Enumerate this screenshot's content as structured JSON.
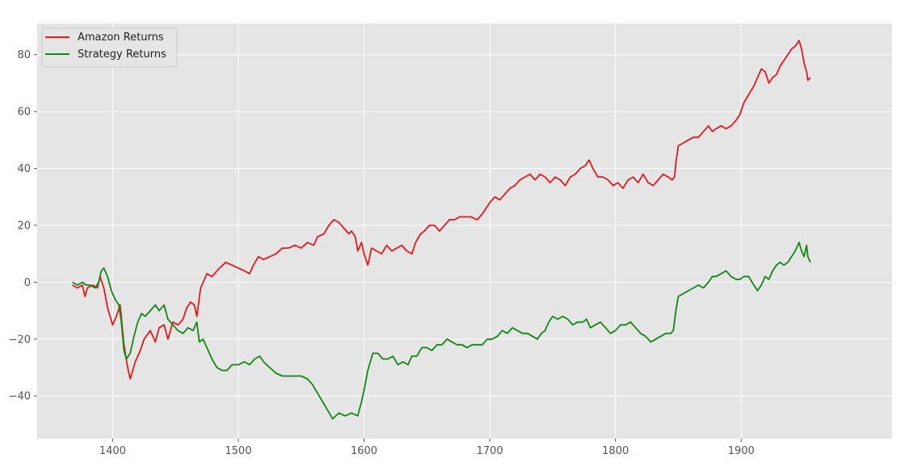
{
  "chart_data": {
    "type": "line",
    "title": "",
    "xlabel": "",
    "ylabel": "",
    "xlim": [
      1340,
      2020
    ],
    "ylim": [
      -55,
      91
    ],
    "xticks": [
      1400,
      1500,
      1600,
      1700,
      1800,
      1900
    ],
    "yticks": [
      -40,
      -20,
      0,
      20,
      40,
      60,
      80
    ],
    "ytick_labels": [
      "−40",
      "−20",
      "0",
      "20",
      "40",
      "60",
      "80"
    ],
    "grid": true,
    "legend_position": "top-left",
    "series": [
      {
        "name": "Amazon Returns",
        "color": "#e41a1c",
        "points": [
          [
            1368,
            -1
          ],
          [
            1372,
            -2
          ],
          [
            1376,
            -1
          ],
          [
            1378,
            -5
          ],
          [
            1380,
            -2
          ],
          [
            1384,
            -1
          ],
          [
            1388,
            -2
          ],
          [
            1390,
            2
          ],
          [
            1393,
            -2
          ],
          [
            1396,
            -9
          ],
          [
            1400,
            -15
          ],
          [
            1403,
            -12
          ],
          [
            1406,
            -8
          ],
          [
            1409,
            -22
          ],
          [
            1412,
            -30
          ],
          [
            1414,
            -34
          ],
          [
            1418,
            -28
          ],
          [
            1422,
            -24
          ],
          [
            1425,
            -20
          ],
          [
            1430,
            -17
          ],
          [
            1434,
            -21
          ],
          [
            1437,
            -16
          ],
          [
            1441,
            -15
          ],
          [
            1444,
            -20
          ],
          [
            1448,
            -14
          ],
          [
            1452,
            -15
          ],
          [
            1456,
            -13
          ],
          [
            1459,
            -9
          ],
          [
            1462,
            -7
          ],
          [
            1465,
            -8
          ],
          [
            1467,
            -12
          ],
          [
            1470,
            -2
          ],
          [
            1472,
            0
          ],
          [
            1475,
            3
          ],
          [
            1479,
            2
          ],
          [
            1485,
            5
          ],
          [
            1490,
            7
          ],
          [
            1495,
            6
          ],
          [
            1500,
            5
          ],
          [
            1505,
            4
          ],
          [
            1509,
            3
          ],
          [
            1512,
            6
          ],
          [
            1516,
            9
          ],
          [
            1520,
            8
          ],
          [
            1525,
            9
          ],
          [
            1530,
            10
          ],
          [
            1535,
            12
          ],
          [
            1540,
            12
          ],
          [
            1545,
            13
          ],
          [
            1550,
            12
          ],
          [
            1555,
            14
          ],
          [
            1560,
            13
          ],
          [
            1563,
            16
          ],
          [
            1568,
            17
          ],
          [
            1572,
            20
          ],
          [
            1576,
            22
          ],
          [
            1580,
            21
          ],
          [
            1584,
            19
          ],
          [
            1588,
            17
          ],
          [
            1590,
            18
          ],
          [
            1593,
            16
          ],
          [
            1595,
            11
          ],
          [
            1598,
            14
          ],
          [
            1600,
            10
          ],
          [
            1603,
            6
          ],
          [
            1606,
            12
          ],
          [
            1610,
            11
          ],
          [
            1614,
            10
          ],
          [
            1618,
            13
          ],
          [
            1622,
            11
          ],
          [
            1626,
            12
          ],
          [
            1630,
            13
          ],
          [
            1634,
            11
          ],
          [
            1638,
            10
          ],
          [
            1641,
            14
          ],
          [
            1645,
            17
          ],
          [
            1648,
            18
          ],
          [
            1652,
            20
          ],
          [
            1656,
            20
          ],
          [
            1660,
            18
          ],
          [
            1664,
            20
          ],
          [
            1668,
            22
          ],
          [
            1672,
            22
          ],
          [
            1676,
            23
          ],
          [
            1680,
            23
          ],
          [
            1685,
            23
          ],
          [
            1690,
            22
          ],
          [
            1694,
            24
          ],
          [
            1697,
            26
          ],
          [
            1700,
            28
          ],
          [
            1704,
            30
          ],
          [
            1708,
            29
          ],
          [
            1712,
            31
          ],
          [
            1716,
            33
          ],
          [
            1720,
            34
          ],
          [
            1724,
            36
          ],
          [
            1728,
            37
          ],
          [
            1732,
            38
          ],
          [
            1736,
            36
          ],
          [
            1740,
            38
          ],
          [
            1744,
            37
          ],
          [
            1748,
            35
          ],
          [
            1752,
            37
          ],
          [
            1756,
            36
          ],
          [
            1760,
            34
          ],
          [
            1764,
            37
          ],
          [
            1768,
            38
          ],
          [
            1772,
            40
          ],
          [
            1776,
            41
          ],
          [
            1779,
            43
          ],
          [
            1782,
            40
          ],
          [
            1786,
            37
          ],
          [
            1790,
            37
          ],
          [
            1794,
            36
          ],
          [
            1798,
            34
          ],
          [
            1802,
            35
          ],
          [
            1806,
            33
          ],
          [
            1810,
            36
          ],
          [
            1814,
            37
          ],
          [
            1818,
            35
          ],
          [
            1822,
            38
          ],
          [
            1826,
            35
          ],
          [
            1830,
            34
          ],
          [
            1834,
            36
          ],
          [
            1838,
            38
          ],
          [
            1842,
            37
          ],
          [
            1845,
            36
          ],
          [
            1847,
            37
          ],
          [
            1848,
            42
          ],
          [
            1850,
            48
          ],
          [
            1854,
            49
          ],
          [
            1858,
            50
          ],
          [
            1862,
            51
          ],
          [
            1866,
            51
          ],
          [
            1870,
            53
          ],
          [
            1874,
            55
          ],
          [
            1877,
            53
          ],
          [
            1880,
            54
          ],
          [
            1884,
            55
          ],
          [
            1888,
            54
          ],
          [
            1892,
            55
          ],
          [
            1896,
            57
          ],
          [
            1899,
            59
          ],
          [
            1902,
            63
          ],
          [
            1906,
            66
          ],
          [
            1910,
            69
          ],
          [
            1913,
            72
          ],
          [
            1916,
            75
          ],
          [
            1919,
            74
          ],
          [
            1922,
            70
          ],
          [
            1925,
            72
          ],
          [
            1928,
            73
          ],
          [
            1931,
            76
          ],
          [
            1934,
            78
          ],
          [
            1937,
            80
          ],
          [
            1940,
            82
          ],
          [
            1943,
            83
          ],
          [
            1946,
            85
          ],
          [
            1948,
            82
          ],
          [
            1950,
            77
          ],
          [
            1952,
            74
          ],
          [
            1953,
            71
          ],
          [
            1955,
            72
          ]
        ]
      },
      {
        "name": "Strategy Returns",
        "color": "#118811",
        "points": [
          [
            1368,
            0
          ],
          [
            1372,
            -1
          ],
          [
            1376,
            0
          ],
          [
            1379,
            -1
          ],
          [
            1382,
            -1
          ],
          [
            1386,
            -2
          ],
          [
            1389,
            0
          ],
          [
            1391,
            4
          ],
          [
            1393,
            5
          ],
          [
            1396,
            2
          ],
          [
            1399,
            -3
          ],
          [
            1402,
            -6
          ],
          [
            1405,
            -8
          ],
          [
            1407,
            -14
          ],
          [
            1409,
            -24
          ],
          [
            1411,
            -27
          ],
          [
            1414,
            -25
          ],
          [
            1417,
            -19
          ],
          [
            1420,
            -14
          ],
          [
            1423,
            -11
          ],
          [
            1426,
            -12
          ],
          [
            1430,
            -10
          ],
          [
            1434,
            -8
          ],
          [
            1437,
            -10
          ],
          [
            1441,
            -8
          ],
          [
            1444,
            -13
          ],
          [
            1448,
            -15
          ],
          [
            1452,
            -17
          ],
          [
            1456,
            -18
          ],
          [
            1460,
            -16
          ],
          [
            1464,
            -17
          ],
          [
            1467,
            -14
          ],
          [
            1469,
            -21
          ],
          [
            1472,
            -20
          ],
          [
            1475,
            -23
          ],
          [
            1479,
            -27
          ],
          [
            1483,
            -30
          ],
          [
            1487,
            -31
          ],
          [
            1491,
            -31
          ],
          [
            1495,
            -29
          ],
          [
            1500,
            -29
          ],
          [
            1505,
            -28
          ],
          [
            1509,
            -29
          ],
          [
            1513,
            -27
          ],
          [
            1517,
            -26
          ],
          [
            1520,
            -28
          ],
          [
            1525,
            -30
          ],
          [
            1530,
            -32
          ],
          [
            1535,
            -33
          ],
          [
            1540,
            -33
          ],
          [
            1545,
            -33
          ],
          [
            1550,
            -33
          ],
          [
            1555,
            -34
          ],
          [
            1559,
            -36
          ],
          [
            1563,
            -39
          ],
          [
            1567,
            -42
          ],
          [
            1571,
            -45
          ],
          [
            1575,
            -48
          ],
          [
            1580,
            -46
          ],
          [
            1585,
            -47
          ],
          [
            1590,
            -46
          ],
          [
            1595,
            -47
          ],
          [
            1598,
            -42
          ],
          [
            1600,
            -38
          ],
          [
            1603,
            -31
          ],
          [
            1607,
            -25
          ],
          [
            1611,
            -25
          ],
          [
            1615,
            -27
          ],
          [
            1619,
            -27
          ],
          [
            1623,
            -26
          ],
          [
            1627,
            -29
          ],
          [
            1631,
            -28
          ],
          [
            1635,
            -29
          ],
          [
            1638,
            -26
          ],
          [
            1642,
            -26
          ],
          [
            1646,
            -23
          ],
          [
            1650,
            -23
          ],
          [
            1654,
            -24
          ],
          [
            1658,
            -22
          ],
          [
            1662,
            -22
          ],
          [
            1666,
            -20
          ],
          [
            1670,
            -21
          ],
          [
            1674,
            -22
          ],
          [
            1678,
            -22
          ],
          [
            1682,
            -23
          ],
          [
            1686,
            -22
          ],
          [
            1690,
            -22
          ],
          [
            1694,
            -22
          ],
          [
            1698,
            -20
          ],
          [
            1702,
            -20
          ],
          [
            1706,
            -19
          ],
          [
            1710,
            -17
          ],
          [
            1714,
            -18
          ],
          [
            1718,
            -16
          ],
          [
            1722,
            -17
          ],
          [
            1726,
            -18
          ],
          [
            1730,
            -18
          ],
          [
            1734,
            -19
          ],
          [
            1738,
            -20
          ],
          [
            1741,
            -18
          ],
          [
            1744,
            -17
          ],
          [
            1747,
            -14
          ],
          [
            1750,
            -12
          ],
          [
            1754,
            -13
          ],
          [
            1758,
            -12
          ],
          [
            1762,
            -13
          ],
          [
            1766,
            -15
          ],
          [
            1770,
            -14
          ],
          [
            1774,
            -14
          ],
          [
            1777,
            -13
          ],
          [
            1780,
            -16
          ],
          [
            1784,
            -15
          ],
          [
            1788,
            -14
          ],
          [
            1792,
            -16
          ],
          [
            1796,
            -18
          ],
          [
            1800,
            -17
          ],
          [
            1804,
            -15
          ],
          [
            1808,
            -15
          ],
          [
            1812,
            -14
          ],
          [
            1816,
            -16
          ],
          [
            1820,
            -18
          ],
          [
            1824,
            -19
          ],
          [
            1828,
            -21
          ],
          [
            1832,
            -20
          ],
          [
            1836,
            -19
          ],
          [
            1840,
            -18
          ],
          [
            1844,
            -18
          ],
          [
            1846,
            -17
          ],
          [
            1848,
            -10
          ],
          [
            1850,
            -5
          ],
          [
            1854,
            -4
          ],
          [
            1858,
            -3
          ],
          [
            1862,
            -2
          ],
          [
            1866,
            -1
          ],
          [
            1870,
            -2
          ],
          [
            1874,
            0
          ],
          [
            1877,
            2
          ],
          [
            1880,
            2
          ],
          [
            1884,
            3
          ],
          [
            1888,
            4
          ],
          [
            1892,
            2
          ],
          [
            1896,
            1
          ],
          [
            1899,
            1
          ],
          [
            1902,
            2
          ],
          [
            1906,
            2
          ],
          [
            1910,
            -1
          ],
          [
            1913,
            -3
          ],
          [
            1916,
            -1
          ],
          [
            1919,
            2
          ],
          [
            1922,
            1
          ],
          [
            1925,
            4
          ],
          [
            1928,
            6
          ],
          [
            1931,
            7
          ],
          [
            1934,
            6
          ],
          [
            1937,
            7
          ],
          [
            1940,
            9
          ],
          [
            1943,
            11
          ],
          [
            1946,
            14
          ],
          [
            1948,
            11
          ],
          [
            1950,
            9
          ],
          [
            1952,
            13
          ],
          [
            1953,
            9
          ],
          [
            1955,
            7
          ]
        ]
      }
    ]
  },
  "colors": {
    "plot_background": "#e5e5e5",
    "grid": "#ffffff",
    "tick_text": "#555555"
  }
}
